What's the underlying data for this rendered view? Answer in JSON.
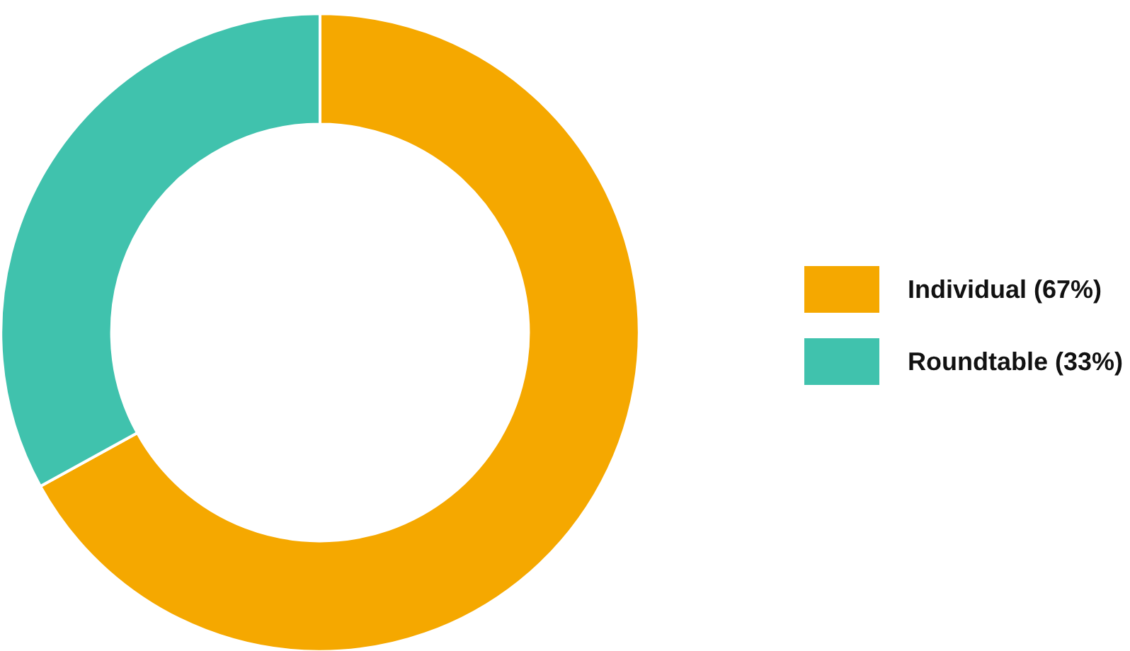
{
  "chart_data": {
    "type": "donut",
    "categories": [
      "Individual (67%)",
      "Roundtable (33%)"
    ],
    "values": [
      67,
      33
    ],
    "colors": [
      "#f5a800",
      "#40c2ad"
    ],
    "legend": "right"
  }
}
